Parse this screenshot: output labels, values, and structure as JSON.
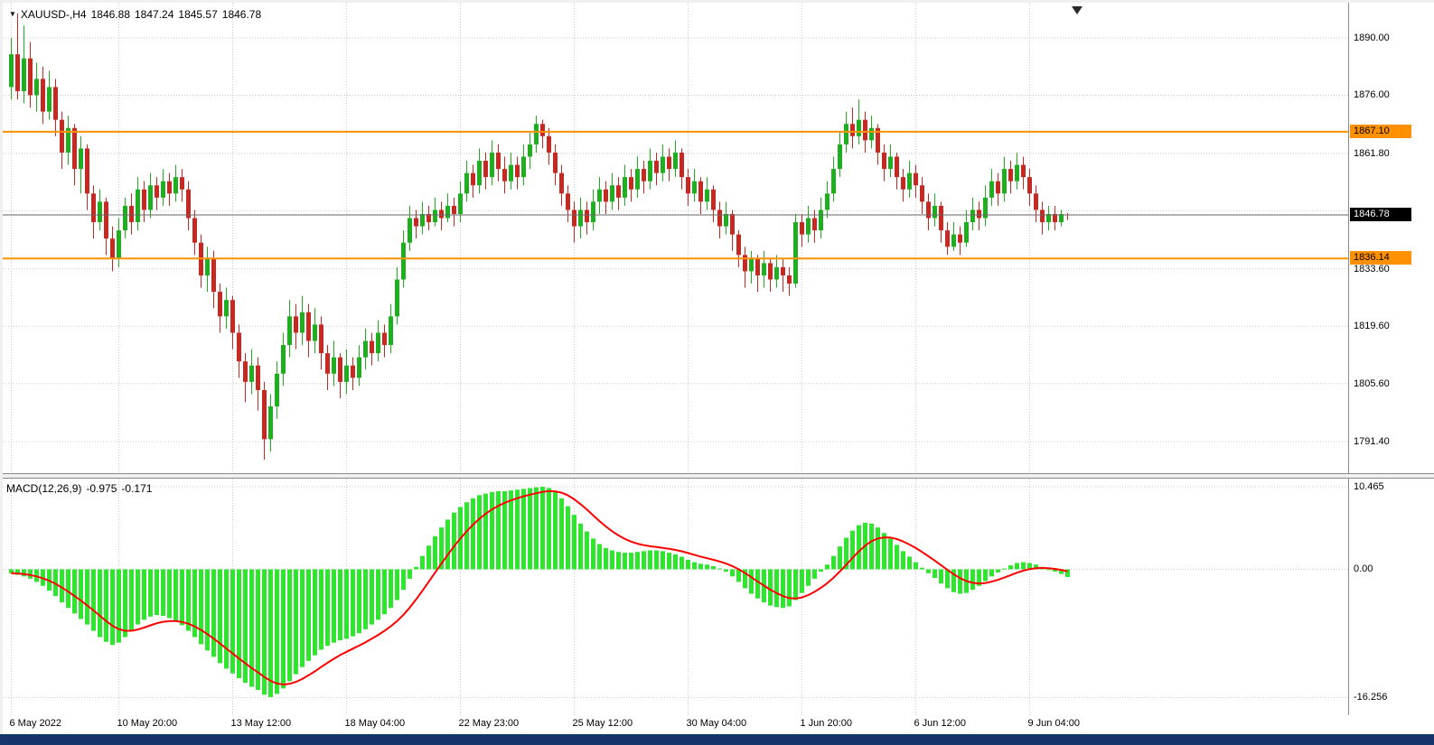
{
  "ohlc_header": {
    "symbol": "XAUUSD-,H4",
    "open": "1846.88",
    "high": "1847.24",
    "low": "1845.57",
    "close": "1846.78"
  },
  "macd_header": {
    "name": "MACD(12,26,9)",
    "main": "-0.975",
    "signal": "-0.171"
  },
  "colors": {
    "candle_up": "#1fae1f",
    "candle_down": "#c62822",
    "macd_bar": "#2ee62e",
    "macd_signal": "#ff0000",
    "level_line": "#ff9000",
    "level_badge_bg": "#ff9000",
    "current_line": "#666666",
    "grid": "#c9c9c9",
    "taskbar": "#16356d"
  },
  "chart_data": [
    {
      "type": "candlestick",
      "title": "XAUUSD-,H4",
      "current_bar": {
        "open": 1846.88,
        "high": 1847.24,
        "low": 1845.57,
        "close": 1846.78
      },
      "y_range": [
        1783.7,
        1898.6
      ],
      "y_axis_labels": [
        {
          "price": 1890.0,
          "label": "1890.00"
        },
        {
          "price": 1876.0,
          "label": "1876.00"
        },
        {
          "price": 1861.8,
          "label": "1861.80"
        },
        {
          "price": 1833.6,
          "label": "1833.60"
        },
        {
          "price": 1819.6,
          "label": "1819.60"
        },
        {
          "price": 1805.6,
          "label": "1805.60"
        },
        {
          "price": 1791.4,
          "label": "1791.40"
        }
      ],
      "grid_prices": [
        1890.0,
        1876.0,
        1861.8,
        1847.8,
        1833.6,
        1819.6,
        1805.6,
        1791.4
      ],
      "levels": [
        {
          "price": 1867.1,
          "label": "1867.10"
        },
        {
          "price": 1836.14,
          "label": "1836.14"
        }
      ],
      "current_price": {
        "price": 1846.78,
        "label": "1846.78"
      },
      "x_labels": [
        {
          "i": 0,
          "label": "6 May 2022"
        },
        {
          "i": 17,
          "label": "10 May 20:00"
        },
        {
          "i": 35,
          "label": "13 May 12:00"
        },
        {
          "i": 53,
          "label": "18 May 04:00"
        },
        {
          "i": 71,
          "label": "22 May 23:00"
        },
        {
          "i": 89,
          "label": "25 May 12:00"
        },
        {
          "i": 107,
          "label": "30 May 04:00"
        },
        {
          "i": 125,
          "label": "1 Jun 20:00"
        },
        {
          "i": 143,
          "label": "6 Jun 12:00"
        },
        {
          "i": 161,
          "label": "9 Jun 04:00"
        }
      ],
      "candles": [
        [
          1878,
          1890,
          1875,
          1886
        ],
        [
          1886,
          1896,
          1875,
          1877
        ],
        [
          1877,
          1893,
          1874,
          1885
        ],
        [
          1885,
          1889,
          1873,
          1876
        ],
        [
          1876,
          1884,
          1872,
          1880
        ],
        [
          1880,
          1883,
          1869,
          1872
        ],
        [
          1872,
          1882,
          1870,
          1878
        ],
        [
          1878,
          1880,
          1866,
          1870
        ],
        [
          1870,
          1872,
          1858,
          1862
        ],
        [
          1862,
          1871,
          1859,
          1868
        ],
        [
          1868,
          1869,
          1854,
          1858
        ],
        [
          1858,
          1866,
          1852,
          1863
        ],
        [
          1863,
          1864,
          1848,
          1852
        ],
        [
          1852,
          1854,
          1841,
          1845
        ],
        [
          1845,
          1853,
          1843,
          1850
        ],
        [
          1850,
          1851,
          1837,
          1841
        ],
        [
          1841,
          1844,
          1833,
          1836
        ],
        [
          1836,
          1846,
          1834,
          1843
        ],
        [
          1843,
          1851,
          1841,
          1849
        ],
        [
          1849,
          1852,
          1842,
          1845
        ],
        [
          1845,
          1856,
          1843,
          1853
        ],
        [
          1853,
          1855,
          1845,
          1848
        ],
        [
          1848,
          1857,
          1846,
          1854
        ],
        [
          1854,
          1856,
          1848,
          1851
        ],
        [
          1851,
          1858,
          1849,
          1855
        ],
        [
          1855,
          1857,
          1849,
          1852
        ],
        [
          1852,
          1859,
          1850,
          1856
        ],
        [
          1856,
          1858,
          1850,
          1853
        ],
        [
          1853,
          1855,
          1843,
          1846
        ],
        [
          1846,
          1848,
          1837,
          1840
        ],
        [
          1840,
          1842,
          1829,
          1832
        ],
        [
          1832,
          1839,
          1828,
          1836
        ],
        [
          1836,
          1838,
          1824,
          1828
        ],
        [
          1828,
          1830,
          1818,
          1822
        ],
        [
          1822,
          1829,
          1819,
          1826
        ],
        [
          1826,
          1827,
          1814,
          1818
        ],
        [
          1818,
          1820,
          1807,
          1811
        ],
        [
          1811,
          1813,
          1801,
          1806
        ],
        [
          1806,
          1814,
          1803,
          1810
        ],
        [
          1810,
          1812,
          1799,
          1804
        ],
        [
          1804,
          1806,
          1787,
          1792
        ],
        [
          1792,
          1803,
          1789,
          1800
        ],
        [
          1800,
          1811,
          1797,
          1808
        ],
        [
          1808,
          1818,
          1805,
          1815
        ],
        [
          1815,
          1826,
          1812,
          1822
        ],
        [
          1822,
          1825,
          1814,
          1818
        ],
        [
          1818,
          1827,
          1815,
          1823
        ],
        [
          1823,
          1825,
          1812,
          1816
        ],
        [
          1816,
          1824,
          1813,
          1820
        ],
        [
          1820,
          1822,
          1809,
          1813
        ],
        [
          1813,
          1815,
          1804,
          1808
        ],
        [
          1808,
          1816,
          1805,
          1812
        ],
        [
          1812,
          1813,
          1802,
          1806
        ],
        [
          1806,
          1814,
          1803,
          1810
        ],
        [
          1810,
          1812,
          1804,
          1807
        ],
        [
          1807,
          1815,
          1805,
          1812
        ],
        [
          1812,
          1819,
          1809,
          1816
        ],
        [
          1816,
          1818,
          1810,
          1813
        ],
        [
          1813,
          1821,
          1811,
          1818
        ],
        [
          1818,
          1820,
          1812,
          1815
        ],
        [
          1815,
          1825,
          1813,
          1822
        ],
        [
          1822,
          1834,
          1820,
          1831
        ],
        [
          1831,
          1843,
          1829,
          1840
        ],
        [
          1840,
          1849,
          1838,
          1846
        ],
        [
          1846,
          1848,
          1841,
          1844
        ],
        [
          1844,
          1850,
          1842,
          1847
        ],
        [
          1847,
          1849,
          1843,
          1845
        ],
        [
          1845,
          1851,
          1844,
          1848
        ],
        [
          1848,
          1850,
          1843,
          1846
        ],
        [
          1846,
          1852,
          1845,
          1849
        ],
        [
          1849,
          1851,
          1844,
          1847
        ],
        [
          1847,
          1855,
          1845,
          1852
        ],
        [
          1852,
          1860,
          1850,
          1857
        ],
        [
          1857,
          1859,
          1851,
          1854
        ],
        [
          1854,
          1863,
          1852,
          1860
        ],
        [
          1860,
          1862,
          1853,
          1856
        ],
        [
          1856,
          1865,
          1854,
          1862
        ],
        [
          1862,
          1864,
          1855,
          1858
        ],
        [
          1858,
          1861,
          1852,
          1855
        ],
        [
          1855,
          1862,
          1853,
          1859
        ],
        [
          1859,
          1861,
          1853,
          1856
        ],
        [
          1856,
          1864,
          1854,
          1861
        ],
        [
          1861,
          1867,
          1858,
          1864
        ],
        [
          1864,
          1871,
          1862,
          1869
        ],
        [
          1869,
          1870,
          1863,
          1866
        ],
        [
          1866,
          1868,
          1859,
          1862
        ],
        [
          1862,
          1864,
          1854,
          1857
        ],
        [
          1857,
          1859,
          1849,
          1852
        ],
        [
          1852,
          1854,
          1845,
          1848
        ],
        [
          1848,
          1850,
          1840,
          1844
        ],
        [
          1844,
          1851,
          1841,
          1848
        ],
        [
          1848,
          1850,
          1842,
          1845
        ],
        [
          1845,
          1853,
          1843,
          1850
        ],
        [
          1850,
          1856,
          1847,
          1853
        ],
        [
          1853,
          1855,
          1847,
          1850
        ],
        [
          1850,
          1857,
          1848,
          1854
        ],
        [
          1854,
          1856,
          1848,
          1851
        ],
        [
          1851,
          1859,
          1849,
          1856
        ],
        [
          1856,
          1858,
          1850,
          1853
        ],
        [
          1853,
          1861,
          1851,
          1858
        ],
        [
          1858,
          1860,
          1852,
          1855
        ],
        [
          1855,
          1863,
          1853,
          1860
        ],
        [
          1860,
          1862,
          1854,
          1857
        ],
        [
          1857,
          1864,
          1855,
          1861
        ],
        [
          1861,
          1863,
          1855,
          1858
        ],
        [
          1858,
          1865,
          1856,
          1862
        ],
        [
          1862,
          1863,
          1853,
          1856
        ],
        [
          1856,
          1858,
          1849,
          1852
        ],
        [
          1852,
          1858,
          1850,
          1855
        ],
        [
          1855,
          1856,
          1847,
          1850
        ],
        [
          1850,
          1856,
          1848,
          1853
        ],
        [
          1853,
          1854,
          1845,
          1848
        ],
        [
          1848,
          1850,
          1841,
          1844
        ],
        [
          1844,
          1850,
          1842,
          1847
        ],
        [
          1847,
          1848,
          1838,
          1842
        ],
        [
          1842,
          1843,
          1834,
          1837
        ],
        [
          1837,
          1839,
          1829,
          1833
        ],
        [
          1833,
          1838,
          1830,
          1836
        ],
        [
          1836,
          1837,
          1828,
          1832
        ],
        [
          1832,
          1838,
          1829,
          1835
        ],
        [
          1835,
          1836,
          1828,
          1831
        ],
        [
          1831,
          1837,
          1829,
          1834
        ],
        [
          1834,
          1836,
          1828,
          1832
        ],
        [
          1832,
          1834,
          1827,
          1830
        ],
        [
          1830,
          1847,
          1829,
          1845
        ],
        [
          1845,
          1847,
          1839,
          1842
        ],
        [
          1842,
          1849,
          1840,
          1846
        ],
        [
          1846,
          1848,
          1840,
          1843
        ],
        [
          1843,
          1851,
          1841,
          1848
        ],
        [
          1848,
          1855,
          1846,
          1852
        ],
        [
          1852,
          1861,
          1850,
          1858
        ],
        [
          1858,
          1867,
          1856,
          1864
        ],
        [
          1864,
          1872,
          1862,
          1869
        ],
        [
          1869,
          1873,
          1863,
          1866
        ],
        [
          1866,
          1875,
          1864,
          1870
        ],
        [
          1870,
          1872,
          1862,
          1865
        ],
        [
          1865,
          1871,
          1863,
          1868
        ],
        [
          1868,
          1869,
          1859,
          1862
        ],
        [
          1862,
          1864,
          1855,
          1858
        ],
        [
          1858,
          1864,
          1856,
          1861
        ],
        [
          1861,
          1862,
          1853,
          1856
        ],
        [
          1856,
          1858,
          1850,
          1853
        ],
        [
          1853,
          1860,
          1851,
          1857
        ],
        [
          1857,
          1859,
          1851,
          1854
        ],
        [
          1854,
          1856,
          1847,
          1850
        ],
        [
          1850,
          1852,
          1843,
          1846
        ],
        [
          1846,
          1852,
          1844,
          1849
        ],
        [
          1849,
          1850,
          1840,
          1843
        ],
        [
          1843,
          1845,
          1837,
          1839
        ],
        [
          1839,
          1845,
          1838,
          1842
        ],
        [
          1842,
          1844,
          1837,
          1840
        ],
        [
          1840,
          1848,
          1839,
          1845
        ],
        [
          1845,
          1851,
          1843,
          1848
        ],
        [
          1848,
          1850,
          1843,
          1846
        ],
        [
          1846,
          1854,
          1844,
          1851
        ],
        [
          1851,
          1858,
          1849,
          1855
        ],
        [
          1855,
          1857,
          1849,
          1852
        ],
        [
          1852,
          1861,
          1850,
          1858
        ],
        [
          1858,
          1860,
          1852,
          1855
        ],
        [
          1855,
          1862,
          1853,
          1859
        ],
        [
          1859,
          1861,
          1853,
          1856
        ],
        [
          1856,
          1858,
          1849,
          1852
        ],
        [
          1852,
          1854,
          1845,
          1848
        ],
        [
          1848,
          1850,
          1842,
          1845
        ],
        [
          1845,
          1849,
          1843,
          1847
        ],
        [
          1847,
          1849,
          1843,
          1845
        ],
        [
          1845,
          1848,
          1844,
          1847
        ],
        [
          1846.88,
          1847.24,
          1845.57,
          1846.78
        ]
      ]
    },
    {
      "type": "bar",
      "name": "MACD(12,26,9)",
      "main_value": -0.975,
      "signal_value": -0.171,
      "fast_period": 12,
      "slow_period": 26,
      "signal_period": 9,
      "y_range": [
        -18.5,
        11.5
      ],
      "y_axis_labels": [
        {
          "value": 10.465,
          "label": "10.465"
        },
        {
          "value": 0,
          "label": "0.00"
        },
        {
          "value": -16.256,
          "label": "-16.256"
        }
      ],
      "histogram": [
        -0.5,
        -0.7,
        -0.9,
        -1.2,
        -1.6,
        -2.1,
        -2.7,
        -3.4,
        -4.2,
        -4.9,
        -5.6,
        -6.3,
        -7.0,
        -7.8,
        -8.6,
        -9.2,
        -9.6,
        -9.3,
        -8.6,
        -7.8,
        -7.0,
        -6.4,
        -6.0,
        -5.8,
        -5.9,
        -6.2,
        -6.6,
        -7.1,
        -7.8,
        -8.6,
        -9.5,
        -10.3,
        -11.1,
        -11.9,
        -12.6,
        -13.2,
        -13.8,
        -14.4,
        -14.9,
        -15.3,
        -15.9,
        -16.2,
        -15.8,
        -15.1,
        -14.2,
        -13.3,
        -12.4,
        -11.6,
        -10.9,
        -10.2,
        -9.7,
        -9.3,
        -9.0,
        -8.8,
        -8.5,
        -8.1,
        -7.6,
        -7.0,
        -6.4,
        -5.7,
        -4.9,
        -3.9,
        -2.6,
        -1.2,
        0.3,
        1.7,
        3.0,
        4.2,
        5.3,
        6.3,
        7.2,
        7.9,
        8.5,
        9.0,
        9.4,
        9.6,
        9.8,
        9.9,
        9.9,
        10.0,
        10.1,
        10.2,
        10.3,
        10.4,
        10.465,
        10.3,
        9.8,
        9.0,
        8.0,
        6.9,
        5.8,
        4.8,
        3.9,
        3.2,
        2.7,
        2.4,
        2.2,
        2.1,
        2.1,
        2.2,
        2.3,
        2.4,
        2.4,
        2.3,
        2.1,
        1.9,
        1.6,
        1.2,
        0.9,
        0.7,
        0.6,
        0.4,
        0.1,
        -0.3,
        -0.9,
        -1.6,
        -2.4,
        -3.1,
        -3.7,
        -4.2,
        -4.6,
        -4.8,
        -4.9,
        -4.7,
        -3.9,
        -3.0,
        -2.1,
        -1.2,
        -0.3,
        0.6,
        1.7,
        2.9,
        4.0,
        4.9,
        5.6,
        5.9,
        5.8,
        5.3,
        4.6,
        3.9,
        3.1,
        2.3,
        1.6,
        0.9,
        0.2,
        -0.5,
        -1.1,
        -1.8,
        -2.4,
        -2.9,
        -3.1,
        -3.0,
        -2.6,
        -2.1,
        -1.5,
        -0.9,
        -0.4,
        0.1,
        0.5,
        0.8,
        0.9,
        0.8,
        0.6,
        0.3,
        0.0,
        -0.3,
        -0.6,
        -0.975
      ]
    }
  ]
}
